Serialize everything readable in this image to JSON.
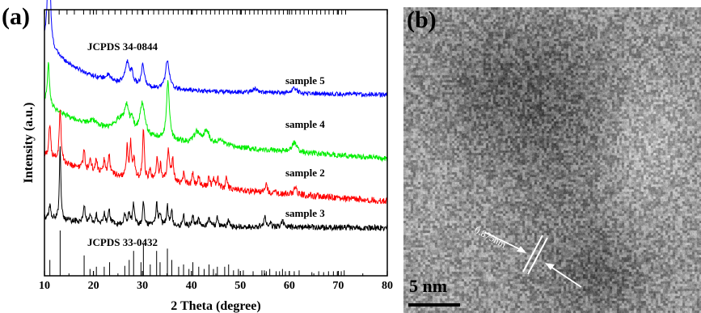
{
  "panel_a": {
    "label": "(a)"
  },
  "panel_b": {
    "label": "(b)",
    "scale_bar": "5 nm",
    "d_spacing": "0.875nm"
  },
  "chart_data": {
    "type": "line",
    "xlabel": "2 Theta (degree)",
    "ylabel": "Intensity (a.u.)",
    "xlim": [
      10,
      80
    ],
    "x_ticks": [
      10,
      20,
      30,
      40,
      50,
      60,
      70,
      80
    ],
    "y_ticks_shown": false,
    "reference_top": {
      "label": "JCPDS 34-0844",
      "peaks": [
        10.9,
        13.0,
        14.6,
        16.1,
        18.0,
        19.3,
        20.6,
        21.9,
        23.1,
        24.4,
        25.6,
        26.8,
        27.9,
        29.0,
        30.1,
        31.2,
        32.3,
        33.3,
        34.3,
        35.3,
        36.3,
        37.3,
        38.3,
        39.3,
        40.2,
        41.1,
        42.1,
        43.0,
        43.9,
        44.8,
        45.7,
        46.6,
        47.5,
        48.4,
        49.3,
        50.2,
        51.0,
        51.9,
        52.8,
        53.6,
        54.5,
        55.4,
        56.2,
        57.1,
        57.9,
        58.8,
        59.6,
        60.5,
        61.3,
        62.2,
        63.0,
        63.9,
        64.7,
        65.6,
        66.4,
        67.3,
        68.1,
        69.0,
        69.8,
        70.7,
        71.5
      ]
    },
    "reference_bottom": {
      "label": "JCPDS 33-0432",
      "peaks": [
        {
          "x": 11.1,
          "h": 0.35
        },
        {
          "x": 13.2,
          "h": 1.0
        },
        {
          "x": 18.1,
          "h": 0.45
        },
        {
          "x": 19.3,
          "h": 0.15
        },
        {
          "x": 20.6,
          "h": 0.2
        },
        {
          "x": 22.2,
          "h": 0.2
        },
        {
          "x": 23.3,
          "h": 0.3
        },
        {
          "x": 26.4,
          "h": 0.22
        },
        {
          "x": 27.3,
          "h": 0.35
        },
        {
          "x": 28.2,
          "h": 0.55
        },
        {
          "x": 29.7,
          "h": 0.3
        },
        {
          "x": 30.2,
          "h": 0.7
        },
        {
          "x": 31.6,
          "h": 0.25
        },
        {
          "x": 32.9,
          "h": 0.55
        },
        {
          "x": 33.6,
          "h": 0.3
        },
        {
          "x": 35.1,
          "h": 0.6
        },
        {
          "x": 36.0,
          "h": 0.35
        },
        {
          "x": 37.4,
          "h": 0.2
        },
        {
          "x": 38.4,
          "h": 0.25
        },
        {
          "x": 39.5,
          "h": 0.15
        },
        {
          "x": 40.3,
          "h": 0.3
        },
        {
          "x": 41.5,
          "h": 0.2
        },
        {
          "x": 42.6,
          "h": 0.15
        },
        {
          "x": 43.6,
          "h": 0.25
        },
        {
          "x": 44.5,
          "h": 0.15
        },
        {
          "x": 45.3,
          "h": 0.2
        },
        {
          "x": 46.8,
          "h": 0.2
        },
        {
          "x": 47.6,
          "h": 0.25
        },
        {
          "x": 48.6,
          "h": 0.12
        },
        {
          "x": 49.6,
          "h": 0.15
        },
        {
          "x": 50.6,
          "h": 0.12
        },
        {
          "x": 52.6,
          "h": 0.1
        },
        {
          "x": 54.4,
          "h": 0.12
        },
        {
          "x": 54.9,
          "h": 0.12
        },
        {
          "x": 55.3,
          "h": 0.1
        },
        {
          "x": 56.0,
          "h": 0.15
        },
        {
          "x": 57.3,
          "h": 0.1
        },
        {
          "x": 58.0,
          "h": 0.1
        },
        {
          "x": 58.6,
          "h": 0.15
        },
        {
          "x": 59.2,
          "h": 0.1
        },
        {
          "x": 60.0,
          "h": 0.1
        },
        {
          "x": 61.0,
          "h": 0.1
        },
        {
          "x": 62.0,
          "h": 0.12
        },
        {
          "x": 64.6,
          "h": 0.08
        },
        {
          "x": 66.0,
          "h": 0.1
        },
        {
          "x": 67.0,
          "h": 0.08
        },
        {
          "x": 68.0,
          "h": 0.1
        },
        {
          "x": 69.0,
          "h": 0.1
        },
        {
          "x": 69.8,
          "h": 0.1
        },
        {
          "x": 70.6,
          "h": 0.1
        },
        {
          "x": 71.2,
          "h": 0.12
        }
      ]
    },
    "series": [
      {
        "name": "sample 5",
        "color": "#0000ff",
        "base": 0.7,
        "decay_amp": 0.18,
        "decay_rate": 0.12,
        "tail": -0.02,
        "noise": 0.008,
        "peaks": [
          {
            "x": 10.9,
            "h": 0.46,
            "w": 0.28
          },
          {
            "x": 26.9,
            "h": 0.08,
            "w": 0.5
          },
          {
            "x": 27.8,
            "h": 0.04,
            "w": 0.4
          },
          {
            "x": 30.1,
            "h": 0.08,
            "w": 0.35
          },
          {
            "x": 35.1,
            "h": 0.11,
            "w": 0.45
          },
          {
            "x": 23.0,
            "h": 0.02,
            "w": 0.6
          },
          {
            "x": 53.0,
            "h": 0.015,
            "w": 0.6
          },
          {
            "x": 61.0,
            "h": 0.02,
            "w": 0.6
          }
        ]
      },
      {
        "name": "sample 4",
        "color": "#00ee00",
        "base": 0.53,
        "decay_amp": 0.12,
        "decay_rate": 0.1,
        "tail": -0.09,
        "noise": 0.01,
        "peaks": [
          {
            "x": 10.8,
            "h": 0.16,
            "w": 0.25
          },
          {
            "x": 25.5,
            "h": 0.05,
            "w": 1.5
          },
          {
            "x": 26.8,
            "h": 0.08,
            "w": 0.5
          },
          {
            "x": 27.9,
            "h": 0.04,
            "w": 0.4
          },
          {
            "x": 30.0,
            "h": 0.12,
            "w": 0.6
          },
          {
            "x": 35.2,
            "h": 0.22,
            "w": 0.35
          },
          {
            "x": 41.1,
            "h": 0.04,
            "w": 0.7
          },
          {
            "x": 43.1,
            "h": 0.05,
            "w": 0.7
          },
          {
            "x": 46.0,
            "h": 0.02,
            "w": 0.8
          },
          {
            "x": 61.0,
            "h": 0.035,
            "w": 0.6
          },
          {
            "x": 20.0,
            "h": 0.02,
            "w": 1.0
          }
        ]
      },
      {
        "name": "sample 2",
        "color": "#ff0000",
        "base": 0.37,
        "decay_amp": 0.08,
        "decay_rate": 0.08,
        "tail": -0.09,
        "noise": 0.012,
        "peaks": [
          {
            "x": 11.1,
            "h": 0.13,
            "w": 0.22
          },
          {
            "x": 13.2,
            "h": 0.2,
            "w": 0.22
          },
          {
            "x": 18.1,
            "h": 0.08,
            "w": 0.2
          },
          {
            "x": 19.4,
            "h": 0.04,
            "w": 0.2
          },
          {
            "x": 20.6,
            "h": 0.05,
            "w": 0.2
          },
          {
            "x": 22.2,
            "h": 0.05,
            "w": 0.2
          },
          {
            "x": 23.2,
            "h": 0.08,
            "w": 0.2
          },
          {
            "x": 26.9,
            "h": 0.11,
            "w": 0.2
          },
          {
            "x": 27.6,
            "h": 0.13,
            "w": 0.2
          },
          {
            "x": 28.3,
            "h": 0.08,
            "w": 0.2
          },
          {
            "x": 30.2,
            "h": 0.2,
            "w": 0.2
          },
          {
            "x": 31.6,
            "h": 0.05,
            "w": 0.2
          },
          {
            "x": 33.0,
            "h": 0.09,
            "w": 0.2
          },
          {
            "x": 33.7,
            "h": 0.06,
            "w": 0.2
          },
          {
            "x": 35.3,
            "h": 0.12,
            "w": 0.3
          },
          {
            "x": 36.2,
            "h": 0.08,
            "w": 0.25
          },
          {
            "x": 38.5,
            "h": 0.05,
            "w": 0.2
          },
          {
            "x": 40.3,
            "h": 0.05,
            "w": 0.2
          },
          {
            "x": 41.5,
            "h": 0.04,
            "w": 0.2
          },
          {
            "x": 43.6,
            "h": 0.04,
            "w": 0.2
          },
          {
            "x": 44.6,
            "h": 0.03,
            "w": 0.2
          },
          {
            "x": 45.4,
            "h": 0.04,
            "w": 0.2
          },
          {
            "x": 47.2,
            "h": 0.05,
            "w": 0.2
          },
          {
            "x": 55.3,
            "h": 0.03,
            "w": 0.2
          },
          {
            "x": 61.2,
            "h": 0.025,
            "w": 0.3
          }
        ]
      },
      {
        "name": "sample 3",
        "color": "#000000",
        "base": 0.19,
        "decay_amp": 0.03,
        "decay_rate": 0.1,
        "tail": -0.01,
        "noise": 0.011,
        "peaks": [
          {
            "x": 11.1,
            "h": 0.05,
            "w": 0.2
          },
          {
            "x": 13.2,
            "h": 0.27,
            "w": 0.18
          },
          {
            "x": 18.1,
            "h": 0.07,
            "w": 0.2
          },
          {
            "x": 19.4,
            "h": 0.03,
            "w": 0.2
          },
          {
            "x": 20.6,
            "h": 0.03,
            "w": 0.2
          },
          {
            "x": 22.2,
            "h": 0.04,
            "w": 0.2
          },
          {
            "x": 23.2,
            "h": 0.05,
            "w": 0.2
          },
          {
            "x": 26.4,
            "h": 0.04,
            "w": 0.2
          },
          {
            "x": 27.3,
            "h": 0.05,
            "w": 0.2
          },
          {
            "x": 28.2,
            "h": 0.08,
            "w": 0.2
          },
          {
            "x": 30.2,
            "h": 0.09,
            "w": 0.2
          },
          {
            "x": 32.9,
            "h": 0.08,
            "w": 0.2
          },
          {
            "x": 33.6,
            "h": 0.04,
            "w": 0.2
          },
          {
            "x": 35.1,
            "h": 0.07,
            "w": 0.2
          },
          {
            "x": 36.0,
            "h": 0.05,
            "w": 0.2
          },
          {
            "x": 38.4,
            "h": 0.04,
            "w": 0.2
          },
          {
            "x": 40.3,
            "h": 0.04,
            "w": 0.2
          },
          {
            "x": 41.5,
            "h": 0.03,
            "w": 0.2
          },
          {
            "x": 43.6,
            "h": 0.03,
            "w": 0.2
          },
          {
            "x": 45.3,
            "h": 0.03,
            "w": 0.2
          },
          {
            "x": 47.6,
            "h": 0.03,
            "w": 0.2
          },
          {
            "x": 55.0,
            "h": 0.04,
            "w": 0.2
          },
          {
            "x": 56.0,
            "h": 0.02,
            "w": 0.2
          },
          {
            "x": 58.6,
            "h": 0.03,
            "w": 0.2
          }
        ]
      }
    ]
  }
}
